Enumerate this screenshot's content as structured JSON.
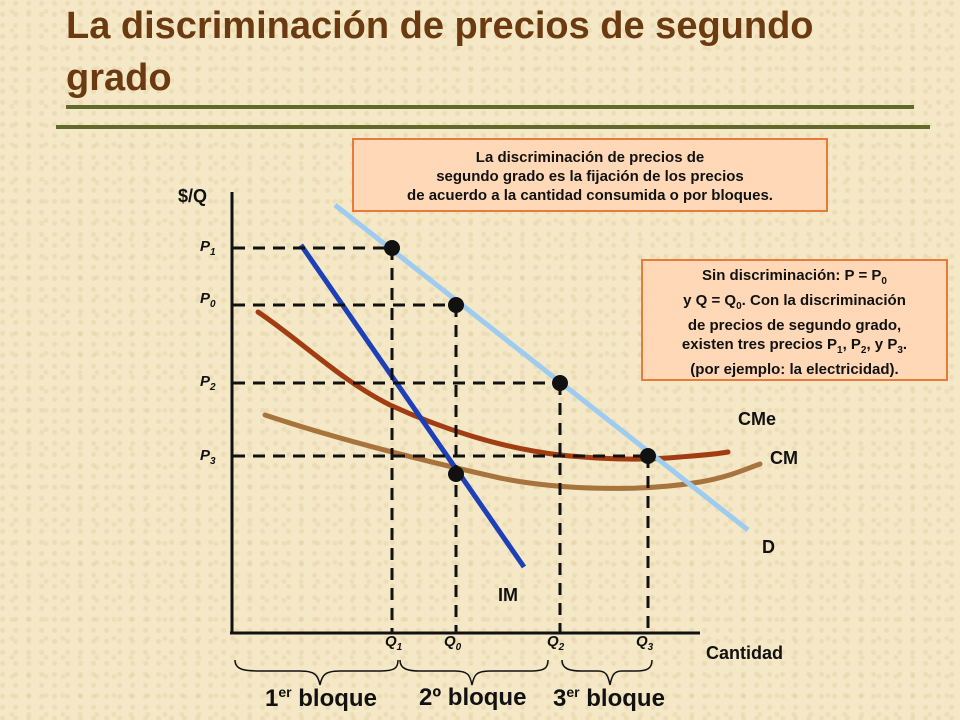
{
  "slide": {
    "title": "La discriminación de precios de segundo grado"
  },
  "notes": {
    "definition": [
      "La discriminación de precios de",
      "segundo grado es la fijación de los precios",
      "de acuerdo a la cantidad consumida o por bloques."
    ],
    "comparison": {
      "line1": "Sin discriminación: P = P",
      "line1_sub": "0",
      "line2_a": "y Q = Q",
      "line2_sub": "0",
      "line2_b": ". Con la discriminación",
      "line3": "de precios de segundo grado,",
      "line4_a": "existen tres precios P",
      "line4_s1": "1",
      "line4_b": ", P",
      "line4_s2": "2",
      "line4_c": ", y P",
      "line4_s3": "3",
      "line4_d": ".",
      "line5": "(por ejemplo: la electricidad)."
    }
  },
  "axes": {
    "y_label": "$/Q",
    "x_label": "Cantidad"
  },
  "price_labels": [
    {
      "base": "P",
      "sub": "1"
    },
    {
      "base": "P",
      "sub": "0"
    },
    {
      "base": "P",
      "sub": "2"
    },
    {
      "base": "P",
      "sub": "3"
    }
  ],
  "quantity_labels": [
    {
      "base": "Q",
      "sub": "1"
    },
    {
      "base": "Q",
      "sub": "0"
    },
    {
      "base": "Q",
      "sub": "2"
    },
    {
      "base": "Q",
      "sub": "3"
    }
  ],
  "curve_labels": {
    "demand": "D",
    "marginal_revenue": "IM",
    "average_cost": "CMe",
    "marginal_cost": "CM"
  },
  "blocks": [
    {
      "base": "1",
      "sup": "er",
      "rest": " bloque"
    },
    {
      "base": "2º bloque",
      "sup": "",
      "rest": ""
    },
    {
      "base": "3",
      "sup": "er",
      "rest": " bloque"
    }
  ],
  "colors": {
    "title": "#6b3a10",
    "demand": "#9ecbf0",
    "marginal_revenue": "#1d3fb8",
    "average_cost": "#a23c12",
    "marginal_cost": "#a8743e",
    "note_fill": "#ffd9b7",
    "note_border": "#e87a3a",
    "rule": "#5f6a2c"
  }
}
